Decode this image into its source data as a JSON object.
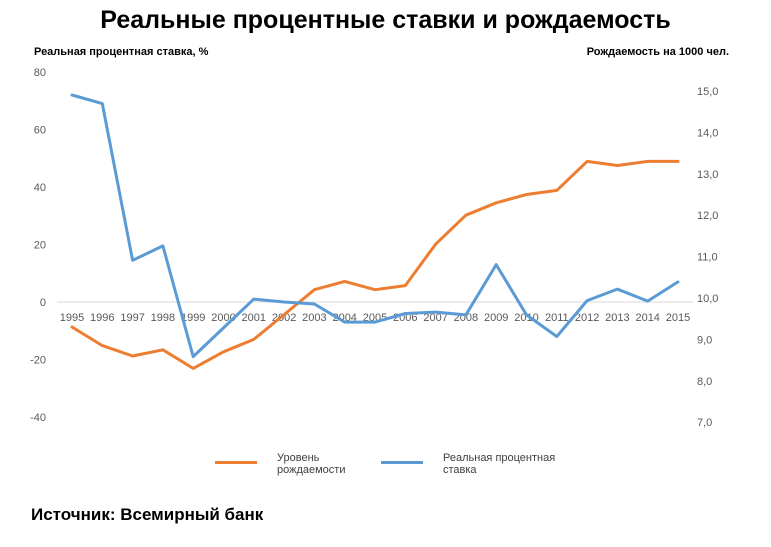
{
  "title": "Реальные процентные ставки и рождаемость",
  "source": "Источник: Всемирный банк",
  "chart_data": {
    "type": "line",
    "x": [
      "1995",
      "1996",
      "1997",
      "1998",
      "1999",
      "2000",
      "2001",
      "2002",
      "2003",
      "2004",
      "2005",
      "2006",
      "2007",
      "2008",
      "2009",
      "2010",
      "2011",
      "2012",
      "2013",
      "2014",
      "2015"
    ],
    "y_left_label": "Реальная процентная ставка, %",
    "y_right_label": "Рождаемость на 1000 чел.",
    "y_left_range": [
      -40,
      80
    ],
    "y_left_ticks": [
      "80",
      "60",
      "40",
      "20",
      "0",
      "-20",
      "-40"
    ],
    "y_right_range": [
      7.0,
      15.5
    ],
    "y_right_ticks": [
      "15,0",
      "14,0",
      "13,0",
      "12,0",
      "11,0",
      "10,0",
      "9,0",
      "8,0",
      "7,0"
    ],
    "series": [
      {
        "name": "Уровень рождаемости",
        "axis": "right",
        "color": "#ed7d31",
        "values": [
          9.3,
          8.85,
          8.6,
          8.75,
          8.3,
          8.7,
          9.0,
          9.6,
          10.2,
          10.4,
          10.2,
          10.3,
          11.3,
          12.0,
          12.3,
          12.5,
          12.6,
          13.3,
          13.2,
          13.3,
          13.3
        ]
      },
      {
        "name": "Реальная процентная ставка",
        "axis": "left",
        "color": "#5b9bd5",
        "values": [
          72,
          69,
          14.5,
          19.5,
          -19,
          -9,
          1,
          0,
          -0.7,
          -7,
          -7,
          -4,
          -3.5,
          -4.5,
          13,
          -4.5,
          -12,
          0.5,
          4.5,
          0.3,
          7
        ]
      }
    ],
    "legend": [
      {
        "label": "Уровень\nрождаемости",
        "color": "#ed7d31"
      },
      {
        "label": "Реальная процентная\nставка",
        "color": "#5b9bd5"
      }
    ],
    "legend_position": "bottom",
    "grid": false
  }
}
